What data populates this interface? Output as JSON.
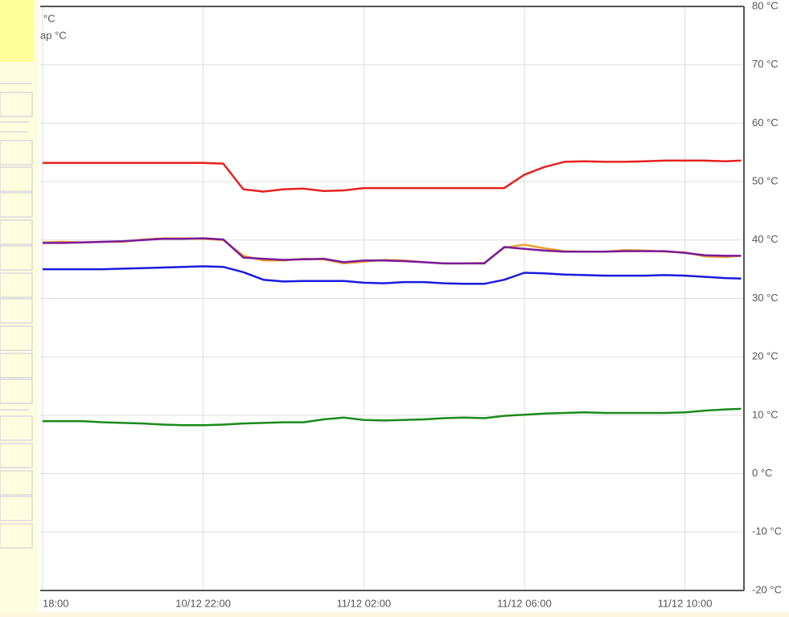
{
  "chart_data": {
    "type": "line",
    "legend_fragments": [
      "°C",
      "ap °C"
    ],
    "x": [
      18,
      18.5,
      19,
      19.5,
      20,
      20.5,
      21,
      21.5,
      22,
      22.5,
      23,
      23.5,
      24,
      24.5,
      25,
      25.5,
      26,
      26.5,
      27,
      27.5,
      28,
      28.5,
      29,
      29.5,
      30,
      30.5,
      31,
      31.5,
      32,
      32.5,
      33,
      33.5,
      34,
      34.5,
      35,
      35.4
    ],
    "xlim": [
      17.94,
      35.47
    ],
    "xticks": [
      {
        "value": 18,
        "label": "18:00"
      },
      {
        "value": 22,
        "label": "10/12 22:00"
      },
      {
        "value": 26,
        "label": "11/12 02:00"
      },
      {
        "value": 30,
        "label": "11/12 06:00"
      },
      {
        "value": 34,
        "label": "11/12 10:00"
      }
    ],
    "ylim": [
      -20,
      80
    ],
    "yticks": [
      {
        "value": -20,
        "label": "-20 °C"
      },
      {
        "value": -10,
        "label": "-10 °C"
      },
      {
        "value": 0,
        "label": "0 °C"
      },
      {
        "value": 10,
        "label": "10 °C"
      },
      {
        "value": 20,
        "label": "20 °C"
      },
      {
        "value": 30,
        "label": "30 °C"
      },
      {
        "value": 40,
        "label": "40 °C"
      },
      {
        "value": 50,
        "label": "50 °C"
      },
      {
        "value": 60,
        "label": "60 °C"
      },
      {
        "value": 70,
        "label": "70 °C"
      },
      {
        "value": 80,
        "label": "80 °C"
      }
    ],
    "grid": true,
    "series": [
      {
        "color": "#e82020",
        "values": [
          53.2,
          53.2,
          53.2,
          53.2,
          53.2,
          53.2,
          53.2,
          53.2,
          53.2,
          53.1,
          48.7,
          48.3,
          48.7,
          48.8,
          48.4,
          48.5,
          48.9,
          48.9,
          48.9,
          48.9,
          48.9,
          48.9,
          48.9,
          48.9,
          51.2,
          52.5,
          53.4,
          53.5,
          53.4,
          53.4,
          53.5,
          53.6,
          53.6,
          53.6,
          53.5,
          53.6
        ]
      },
      {
        "color": "#f0a030",
        "values": [
          39.6,
          39.7,
          39.6,
          39.7,
          39.7,
          40.1,
          40.3,
          40.3,
          40.2,
          40.0,
          37.3,
          36.5,
          36.5,
          36.8,
          36.7,
          36,
          36.3,
          36.6,
          36.5,
          36.2,
          36,
          36,
          36.1,
          38.7,
          39.2,
          38.6,
          38.1,
          38,
          38,
          38.3,
          38.2,
          38,
          37.9,
          37.2,
          37.1,
          37.3
        ]
      },
      {
        "color": "#7a1a9a",
        "values": [
          39.5,
          39.5,
          39.6,
          39.7,
          39.8,
          40,
          40.2,
          40.2,
          40.3,
          40.1,
          37,
          36.8,
          36.6,
          36.7,
          36.8,
          36.2,
          36.5,
          36.5,
          36.4,
          36.2,
          36,
          36,
          36,
          38.8,
          38.5,
          38.2,
          38,
          38,
          38,
          38.1,
          38.1,
          38.1,
          37.8,
          37.4,
          37.3,
          37.3
        ]
      },
      {
        "color": "#1a1ae0",
        "values": [
          35,
          35,
          35,
          35,
          35.1,
          35.2,
          35.3,
          35.4,
          35.5,
          35.4,
          34.5,
          33.2,
          32.9,
          33,
          33,
          33,
          32.7,
          32.6,
          32.8,
          32.8,
          32.6,
          32.5,
          32.5,
          33.2,
          34.4,
          34.3,
          34.1,
          34,
          33.9,
          33.9,
          33.9,
          34,
          33.9,
          33.7,
          33.5,
          33.4
        ]
      },
      {
        "color": "#1a8a1a",
        "values": [
          9,
          9,
          9,
          8.8,
          8.7,
          8.6,
          8.4,
          8.3,
          8.3,
          8.4,
          8.6,
          8.7,
          8.8,
          8.8,
          9.3,
          9.6,
          9.2,
          9.1,
          9.2,
          9.3,
          9.5,
          9.6,
          9.5,
          9.9,
          10.1,
          10.3,
          10.4,
          10.5,
          10.4,
          10.4,
          10.4,
          10.4,
          10.5,
          10.8,
          11,
          11.1
        ]
      }
    ]
  }
}
